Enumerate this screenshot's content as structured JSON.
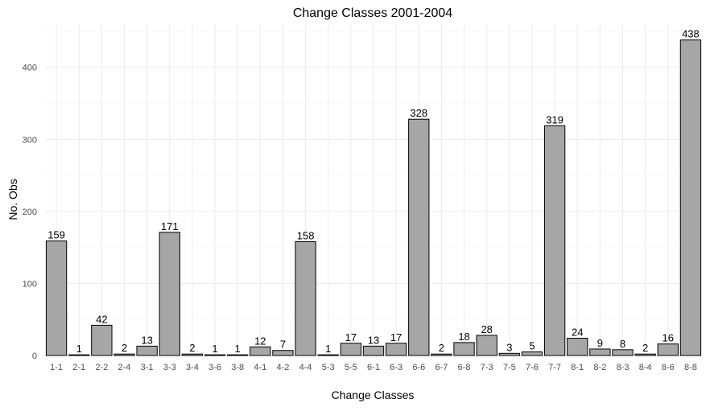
{
  "chart_data": {
    "type": "bar",
    "title": "Change Classes 2001-2004",
    "xlabel": "Change Classes",
    "ylabel": "No. Obs",
    "categories": [
      "1-1",
      "2-1",
      "2-2",
      "2-4",
      "3-1",
      "3-3",
      "3-4",
      "3-6",
      "3-8",
      "4-1",
      "4-2",
      "4-4",
      "5-3",
      "5-5",
      "6-1",
      "6-3",
      "6-6",
      "6-7",
      "6-8",
      "7-3",
      "7-5",
      "7-6",
      "7-7",
      "8-1",
      "8-2",
      "8-3",
      "8-4",
      "8-6",
      "8-8"
    ],
    "values": [
      159,
      1,
      42,
      2,
      13,
      171,
      2,
      1,
      1,
      12,
      7,
      158,
      1,
      17,
      13,
      17,
      328,
      2,
      18,
      28,
      3,
      5,
      319,
      24,
      9,
      8,
      2,
      16,
      438
    ],
    "ylim": [
      0,
      460
    ],
    "yticks": [
      0,
      100,
      200,
      300,
      400
    ],
    "grid": true,
    "bar_fill": "#a6a6a6",
    "bar_stroke": "#000000",
    "show_data_labels": true
  }
}
